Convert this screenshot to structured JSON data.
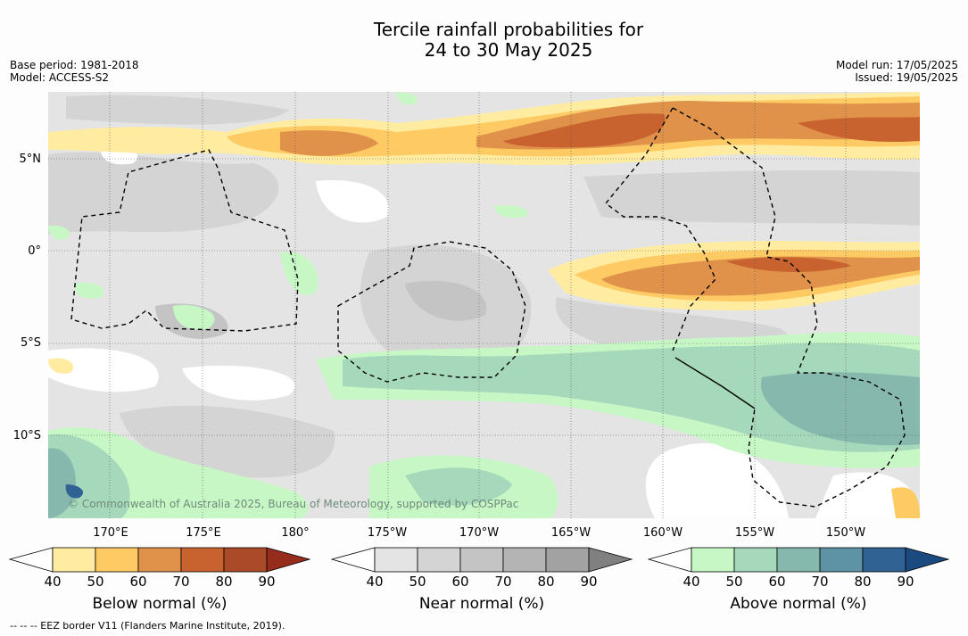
{
  "title_line1": "Tercile rainfall probabilities for",
  "title_line2": "24 to 30 May 2025",
  "meta": {
    "base_period": "Base period: 1981-2018",
    "model": "Model: ACCESS-S2",
    "model_run": "Model run: 17/05/2025",
    "issued": "Issued: 19/05/2025"
  },
  "lat_labels": [
    "5°N",
    "0°",
    "5°S",
    "10°S"
  ],
  "lon_labels": [
    "170°E",
    "175°E",
    "180°",
    "175°W",
    "170°W",
    "165°W",
    "160°W",
    "155°W",
    "150°W"
  ],
  "copyright": "© Commonwealth of Australia 2025, Bureau of Meteorology, supported by COSPPac",
  "colorbars": [
    {
      "label": "Below normal (%)",
      "ticks": [
        "40",
        "50",
        "60",
        "70",
        "80",
        "90"
      ],
      "colors": [
        "#ffffff",
        "#ffeca0",
        "#fdca63",
        "#e0914a",
        "#c8622e",
        "#ab4a28",
        "#962c1c"
      ]
    },
    {
      "label": "Near normal (%)",
      "ticks": [
        "40",
        "50",
        "60",
        "70",
        "80",
        "90"
      ],
      "colors": [
        "#ffffff",
        "#e4e4e4",
        "#d4d4d4",
        "#c4c4c4",
        "#b4b4b4",
        "#a2a2a2",
        "#808080"
      ]
    },
    {
      "label": "Above normal (%)",
      "ticks": [
        "40",
        "50",
        "60",
        "70",
        "80",
        "90"
      ],
      "colors": [
        "#ffffff",
        "#c8f7c6",
        "#a6d9bc",
        "#86b8ae",
        "#5e93a6",
        "#306293",
        "#1a4a80"
      ]
    }
  ],
  "footnote": "--  --  -- EEZ border V11 (Flanders Marine Institute, 2019)."
}
